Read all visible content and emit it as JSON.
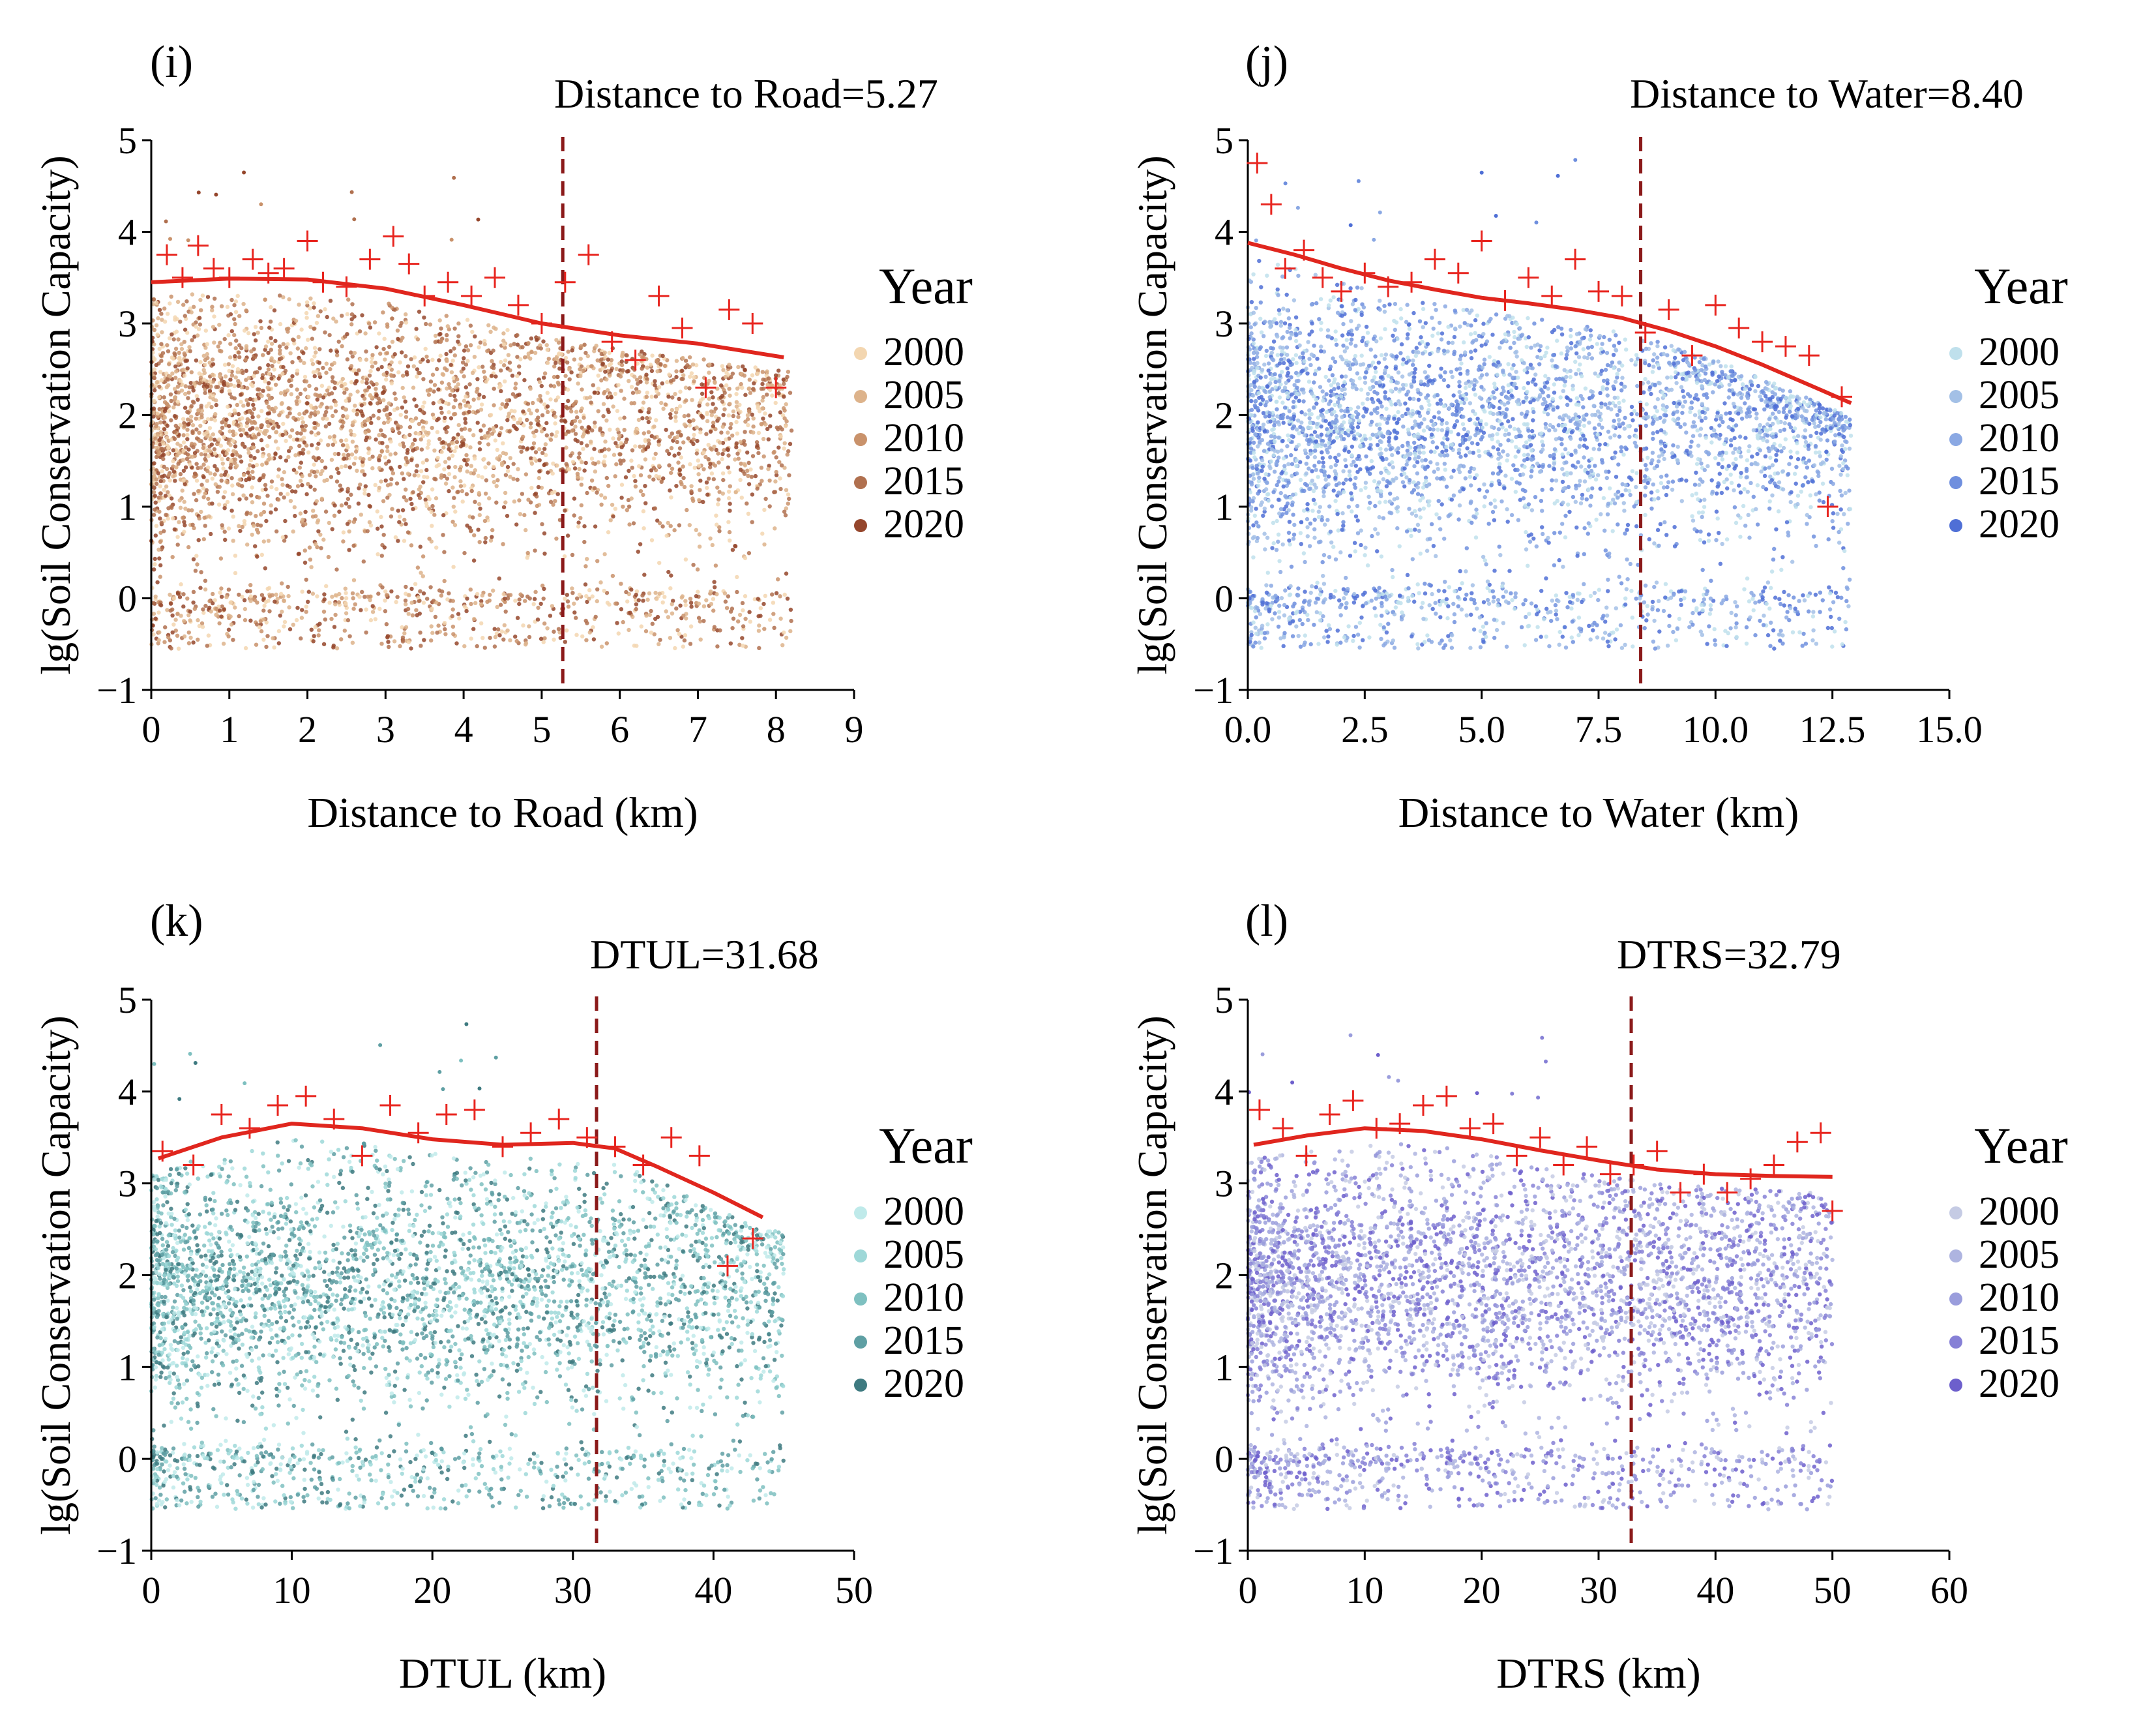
{
  "figure": "Scatter plots of lg(Soil Conservation Capacity) against distance factors",
  "legend_title": "Year",
  "years": [
    "2000",
    "2005",
    "2010",
    "2015",
    "2020"
  ],
  "ylabel": "lg(Soil Conservation Capacity)",
  "chart_data": [
    {
      "type": "scatter",
      "panel_label": "(i)",
      "xlabel": "Distance to Road (km)",
      "ylabel": "lg(Soil Conservation Capacity)",
      "xlim": [
        0,
        9
      ],
      "ylim": [
        -1,
        5
      ],
      "xticks": [
        "0",
        "1",
        "2",
        "3",
        "4",
        "5",
        "6",
        "7",
        "8",
        "9"
      ],
      "yticks": [
        "−1",
        "0",
        "1",
        "2",
        "3",
        "4",
        "5"
      ],
      "threshold_label": "Distance to Road=5.27",
      "threshold": 5.27,
      "max_x": 8.2,
      "legend_title": "Year",
      "series_colors": [
        "#f3d6b0",
        "#ddb38b",
        "#c9926b",
        "#b0704f",
        "#95462c"
      ],
      "fit_curve": {
        "x": [
          0,
          1,
          2,
          3,
          4,
          5,
          6,
          7,
          8.1
        ],
        "y": [
          3.45,
          3.49,
          3.48,
          3.38,
          3.2,
          3.0,
          2.87,
          2.78,
          2.63
        ]
      },
      "max_points": {
        "x": [
          0.2,
          0.4,
          0.6,
          0.8,
          1.0,
          1.3,
          1.5,
          1.7,
          2.0,
          2.2,
          2.5,
          2.8,
          3.1,
          3.3,
          3.5,
          3.8,
          4.1,
          4.4,
          4.7,
          5.0,
          5.3,
          5.6,
          5.9,
          6.2,
          6.5,
          6.8,
          7.1,
          7.4,
          7.7,
          8.0
        ],
        "y": [
          3.75,
          3.5,
          3.85,
          3.6,
          3.5,
          3.7,
          3.55,
          3.6,
          3.9,
          3.45,
          3.4,
          3.7,
          3.95,
          3.65,
          3.3,
          3.45,
          3.3,
          3.5,
          3.2,
          3.0,
          3.45,
          3.75,
          2.8,
          2.6,
          3.3,
          2.95,
          2.3,
          3.15,
          3.0,
          2.3
        ]
      }
    },
    {
      "type": "scatter",
      "panel_label": "(j)",
      "xlabel": "Distance to Water (km)",
      "ylabel": "lg(Soil Conservation Capacity)",
      "xlim": [
        0,
        15
      ],
      "ylim": [
        -1,
        5
      ],
      "xticks": [
        "0.0",
        "2.5",
        "5.0",
        "7.5",
        "10.0",
        "12.5",
        "15.0"
      ],
      "yticks": [
        "−1",
        "0",
        "1",
        "2",
        "3",
        "4",
        "5"
      ],
      "threshold_label": "Distance to Water=8.40",
      "threshold": 8.4,
      "max_x": 12.9,
      "legend_title": "Year",
      "series_colors": [
        "#bfe0ec",
        "#a3c0e6",
        "#8aa8e3",
        "#6f8fde",
        "#4f6fd6"
      ],
      "fit_curve": {
        "x": [
          0,
          1,
          2,
          3,
          4,
          5,
          6,
          7,
          8,
          9,
          10,
          11,
          12,
          12.9
        ],
        "y": [
          3.88,
          3.75,
          3.6,
          3.47,
          3.37,
          3.28,
          3.22,
          3.15,
          3.06,
          2.92,
          2.75,
          2.55,
          2.33,
          2.13
        ]
      },
      "max_points": {
        "x": [
          0.2,
          0.5,
          0.8,
          1.2,
          1.6,
          2.0,
          2.5,
          3.0,
          3.5,
          4.0,
          4.5,
          5.0,
          5.5,
          6.0,
          6.5,
          7.0,
          7.5,
          8.0,
          8.5,
          9.0,
          9.5,
          10.0,
          10.5,
          11.0,
          11.5,
          12.0,
          12.4,
          12.7
        ],
        "y": [
          4.75,
          4.3,
          3.6,
          3.8,
          3.5,
          3.35,
          3.55,
          3.4,
          3.45,
          3.7,
          3.55,
          3.9,
          3.25,
          3.5,
          3.3,
          3.7,
          3.35,
          3.3,
          2.9,
          3.15,
          2.65,
          3.2,
          2.95,
          2.8,
          2.75,
          2.65,
          1.0,
          2.2
        ]
      }
    },
    {
      "type": "scatter",
      "panel_label": "(k)",
      "xlabel": "DTUL (km)",
      "ylabel": "lg(Soil Conservation Capacity)",
      "xlim": [
        0,
        50
      ],
      "ylim": [
        -1,
        5
      ],
      "xticks": [
        "0",
        "10",
        "20",
        "30",
        "40",
        "50"
      ],
      "yticks": [
        "−1",
        "0",
        "1",
        "2",
        "3",
        "4",
        "5"
      ],
      "threshold_label": "DTUL=31.68",
      "threshold": 31.68,
      "max_x": 45,
      "legend_title": "Year",
      "series_colors": [
        "#bfeaea",
        "#9ed8d8",
        "#7ec0c0",
        "#5e9fa3",
        "#3e7a80"
      ],
      "fit_curve": {
        "x": [
          0.5,
          5,
          10,
          15,
          20,
          25,
          30,
          33,
          36,
          40,
          43.5
        ],
        "y": [
          3.27,
          3.5,
          3.65,
          3.6,
          3.48,
          3.42,
          3.44,
          3.38,
          3.18,
          2.9,
          2.63
        ]
      },
      "max_points": {
        "x": [
          0.8,
          3.0,
          5.0,
          7.0,
          9.0,
          11.0,
          13.0,
          15.0,
          17.0,
          19.0,
          21.0,
          23.0,
          25.0,
          27.0,
          29.0,
          31.0,
          33.0,
          35.0,
          37.0,
          39.0,
          41.0,
          42.8
        ],
        "y": [
          3.35,
          3.2,
          3.75,
          3.6,
          3.85,
          3.95,
          3.7,
          3.3,
          3.85,
          3.55,
          3.75,
          3.8,
          3.4,
          3.55,
          3.7,
          3.5,
          3.4,
          3.2,
          3.5,
          3.3,
          2.1,
          2.4
        ]
      }
    },
    {
      "type": "scatter",
      "panel_label": "(l)",
      "xlabel": "DTRS (km)",
      "ylabel": "lg(Soil Conservation Capacity)",
      "xlim": [
        0,
        60
      ],
      "ylim": [
        -1,
        5
      ],
      "xticks": [
        "0",
        "10",
        "20",
        "30",
        "40",
        "50",
        "60"
      ],
      "yticks": [
        "−1",
        "0",
        "1",
        "2",
        "3",
        "4",
        "5"
      ],
      "threshold_label": "DTRS=32.79",
      "threshold": 32.79,
      "max_x": 50,
      "legend_title": "Year",
      "series_colors": [
        "#c5cbe4",
        "#aeb4e0",
        "#9a9ddc",
        "#8680d6",
        "#6d5fcc"
      ],
      "fit_curve": {
        "x": [
          0.5,
          5,
          10,
          15,
          20,
          25,
          30,
          35,
          40,
          45,
          50
        ],
        "y": [
          3.42,
          3.52,
          3.6,
          3.57,
          3.48,
          3.36,
          3.25,
          3.15,
          3.1,
          3.08,
          3.07
        ]
      },
      "max_points": {
        "x": [
          1.0,
          3.0,
          5.0,
          7.0,
          9.0,
          11.0,
          13.0,
          15.0,
          17.0,
          19.0,
          21.0,
          23.0,
          25.0,
          27.0,
          29.0,
          31.0,
          33.0,
          35.0,
          37.0,
          39.0,
          41.0,
          43.0,
          45.0,
          47.0,
          49.0,
          50.0
        ],
        "y": [
          3.8,
          3.6,
          3.3,
          3.75,
          3.9,
          3.6,
          3.65,
          3.85,
          3.95,
          3.6,
          3.65,
          3.3,
          3.5,
          3.2,
          3.4,
          3.1,
          3.2,
          3.35,
          2.9,
          3.1,
          2.9,
          3.05,
          3.2,
          3.45,
          3.55,
          2.7
        ]
      }
    }
  ]
}
